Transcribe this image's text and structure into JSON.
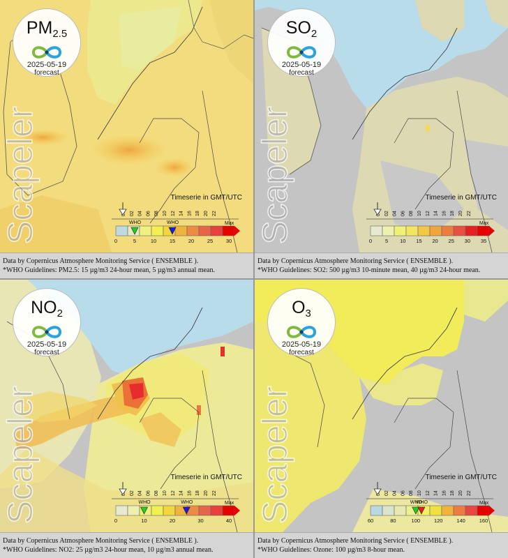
{
  "common": {
    "date": "2025-05-19",
    "forecast_label": "forecast",
    "watermark": "Scapeler",
    "timeserie_label": "Timeserie in GMT/UTC",
    "who_label": "WHO",
    "max_label": "Max",
    "hours": [
      "00",
      "02",
      "04",
      "06",
      "08",
      "10",
      "12",
      "14",
      "16",
      "18",
      "20",
      "22"
    ],
    "data_source": "Data by Copernicus Atmosphere Monitoring Service ( ENSEMBLE ).",
    "colors": {
      "sea": "#b8dcea",
      "land_nodata": "#c4c4c4",
      "border": "#333333"
    }
  },
  "panels": [
    {
      "id": "pm25",
      "pollutant_main": "PM",
      "pollutant_sub": "2.5",
      "scale_values": [
        "0",
        "5",
        "10",
        "15",
        "20",
        "25",
        "30"
      ],
      "scale_colors": [
        "#c0d8e0",
        "#e6e8c0",
        "#eff080",
        "#f2f050",
        "#f2d640",
        "#f0b43c",
        "#ec8c44",
        "#e86448",
        "#e8403c",
        "#e60000"
      ],
      "who_markers": [
        {
          "value": 5,
          "color": "#22cc22"
        },
        {
          "value": 15,
          "color": "#1a1ae0"
        }
      ],
      "guideline": "*WHO Guidelines: PM2.5: 15 µg/m3 24-hour mean, 5 µg/m3 annual mean."
    },
    {
      "id": "so2",
      "pollutant_main": "SO",
      "pollutant_sub": "2",
      "scale_values": [
        "0",
        "5",
        "10",
        "15",
        "20",
        "25",
        "30",
        "35"
      ],
      "scale_colors": [
        "#e6ead0",
        "#eef0b0",
        "#f0f078",
        "#f2e660",
        "#f2c844",
        "#f0a63c",
        "#ec7c40",
        "#e85040",
        "#e62020",
        "#e60000"
      ],
      "who_markers": [],
      "guideline": "*WHO Guidelines: SO2: 500 µg/m3 10-minute mean, 40 µg/m3 24-hour mean."
    },
    {
      "id": "no2",
      "pollutant_main": "NO",
      "pollutant_sub": "2",
      "scale_values": [
        "0",
        "10",
        "20",
        "30",
        "40"
      ],
      "scale_colors": [
        "#e6ead0",
        "#eef0b0",
        "#f0f078",
        "#f2f050",
        "#f2d640",
        "#f0b43c",
        "#ec8c44",
        "#e86448",
        "#e8403c",
        "#e60000"
      ],
      "who_markers": [
        {
          "value": 10,
          "color": "#22cc22"
        },
        {
          "value": 25,
          "color": "#1a1ae0"
        }
      ],
      "guideline": "*WHO Guidelines: NO2: 25 µg/m3 24-hour mean, 10 µg/m3 annual mean."
    },
    {
      "id": "o3",
      "pollutant_main": "O",
      "pollutant_sub": "3",
      "scale_values": [
        "60",
        "80",
        "100",
        "120",
        "140",
        "160"
      ],
      "scale_colors": [
        "#b8d8e4",
        "#d8e4cc",
        "#e6eab0",
        "#eef090",
        "#f2f060",
        "#f2e040",
        "#f0b43c",
        "#ec7c40",
        "#e84840",
        "#e60000"
      ],
      "who_markers": [
        {
          "value": 100,
          "color": "#22cc22"
        },
        {
          "value": 105,
          "color": "#e02020"
        }
      ],
      "guideline": "*WHO Guidelines: Ozone: 100 µg/m3 8-hour mean."
    }
  ]
}
